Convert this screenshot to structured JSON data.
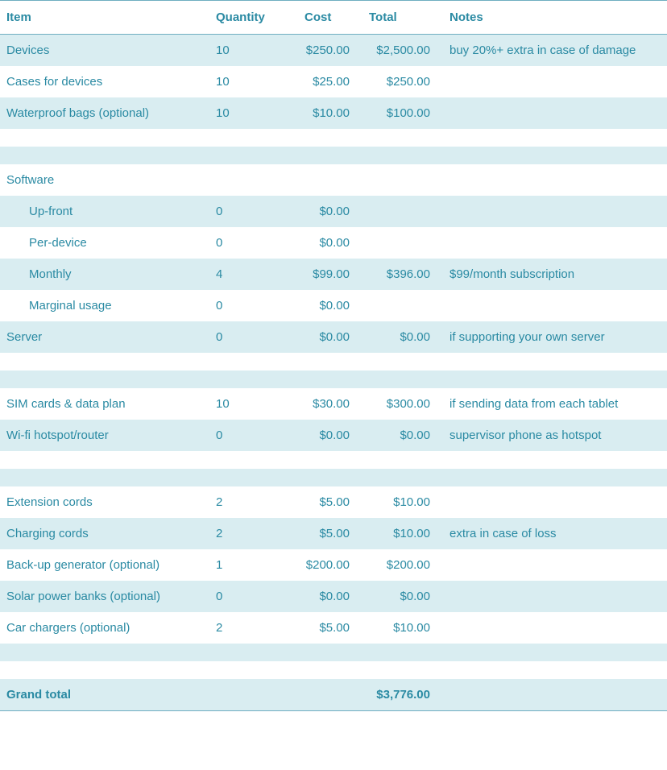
{
  "colors": {
    "text": "#2a8aa3",
    "stripe": "#d9edf1",
    "border": "#6faec1",
    "background": "#ffffff"
  },
  "columns": {
    "item": "Item",
    "quantity": "Quantity",
    "cost": "Cost",
    "total": "Total",
    "notes": "Notes"
  },
  "rows": [
    {
      "type": "data",
      "stripe": true,
      "indent": false,
      "item": "Devices",
      "quantity": "10",
      "cost": "$250.00",
      "total": "$2,500.00",
      "notes": "buy 20%+ extra in case of damage"
    },
    {
      "type": "data",
      "stripe": false,
      "indent": false,
      "item": "Cases for devices",
      "quantity": "10",
      "cost": "$25.00",
      "total": "$250.00",
      "notes": ""
    },
    {
      "type": "data",
      "stripe": true,
      "indent": false,
      "item": "Waterproof bags (optional)",
      "quantity": "10",
      "cost": "$10.00",
      "total": "$100.00",
      "notes": ""
    },
    {
      "type": "spacer"
    },
    {
      "type": "spacer-stripe"
    },
    {
      "type": "data",
      "stripe": false,
      "indent": false,
      "item": "Software",
      "quantity": "",
      "cost": "",
      "total": "",
      "notes": ""
    },
    {
      "type": "data",
      "stripe": true,
      "indent": true,
      "item": "Up-front",
      "quantity": "0",
      "cost": "$0.00",
      "total": "",
      "notes": ""
    },
    {
      "type": "data",
      "stripe": false,
      "indent": true,
      "item": "Per-device",
      "quantity": "0",
      "cost": "$0.00",
      "total": "",
      "notes": ""
    },
    {
      "type": "data",
      "stripe": true,
      "indent": true,
      "item": "Monthly",
      "quantity": "4",
      "cost": "$99.00",
      "total": "$396.00",
      "notes": "$99/month subscription"
    },
    {
      "type": "data",
      "stripe": false,
      "indent": true,
      "item": "Marginal usage",
      "quantity": "0",
      "cost": "$0.00",
      "total": "",
      "notes": ""
    },
    {
      "type": "data",
      "stripe": true,
      "indent": false,
      "item": "Server",
      "quantity": "0",
      "cost": "$0.00",
      "total": "$0.00",
      "notes": "if supporting your own server"
    },
    {
      "type": "spacer"
    },
    {
      "type": "spacer-stripe"
    },
    {
      "type": "data",
      "stripe": false,
      "indent": false,
      "item": "SIM cards & data plan",
      "quantity": "10",
      "cost": "$30.00",
      "total": "$300.00",
      "notes": "if sending data from each tablet"
    },
    {
      "type": "data",
      "stripe": true,
      "indent": false,
      "item": "Wi-fi hotspot/router",
      "quantity": "0",
      "cost": "$0.00",
      "total": "$0.00",
      "notes": "supervisor phone as hotspot"
    },
    {
      "type": "spacer"
    },
    {
      "type": "spacer-stripe"
    },
    {
      "type": "data",
      "stripe": false,
      "indent": false,
      "item": "Extension cords",
      "quantity": "2",
      "cost": "$5.00",
      "total": "$10.00",
      "notes": ""
    },
    {
      "type": "data",
      "stripe": true,
      "indent": false,
      "item": "Charging cords",
      "quantity": "2",
      "cost": "$5.00",
      "total": "$10.00",
      "notes": "extra in case of loss"
    },
    {
      "type": "data",
      "stripe": false,
      "indent": false,
      "item": "Back-up generator (optional)",
      "quantity": "1",
      "cost": "$200.00",
      "total": "$200.00",
      "notes": ""
    },
    {
      "type": "data",
      "stripe": true,
      "indent": false,
      "item": "Solar power banks (optional)",
      "quantity": "0",
      "cost": "$0.00",
      "total": "$0.00",
      "notes": ""
    },
    {
      "type": "data",
      "stripe": false,
      "indent": false,
      "item": "Car chargers (optional)",
      "quantity": "2",
      "cost": "$5.00",
      "total": "$10.00",
      "notes": ""
    },
    {
      "type": "spacer-stripe"
    },
    {
      "type": "spacer"
    }
  ],
  "grand": {
    "label": "Grand total",
    "total": "$3,776.00"
  }
}
